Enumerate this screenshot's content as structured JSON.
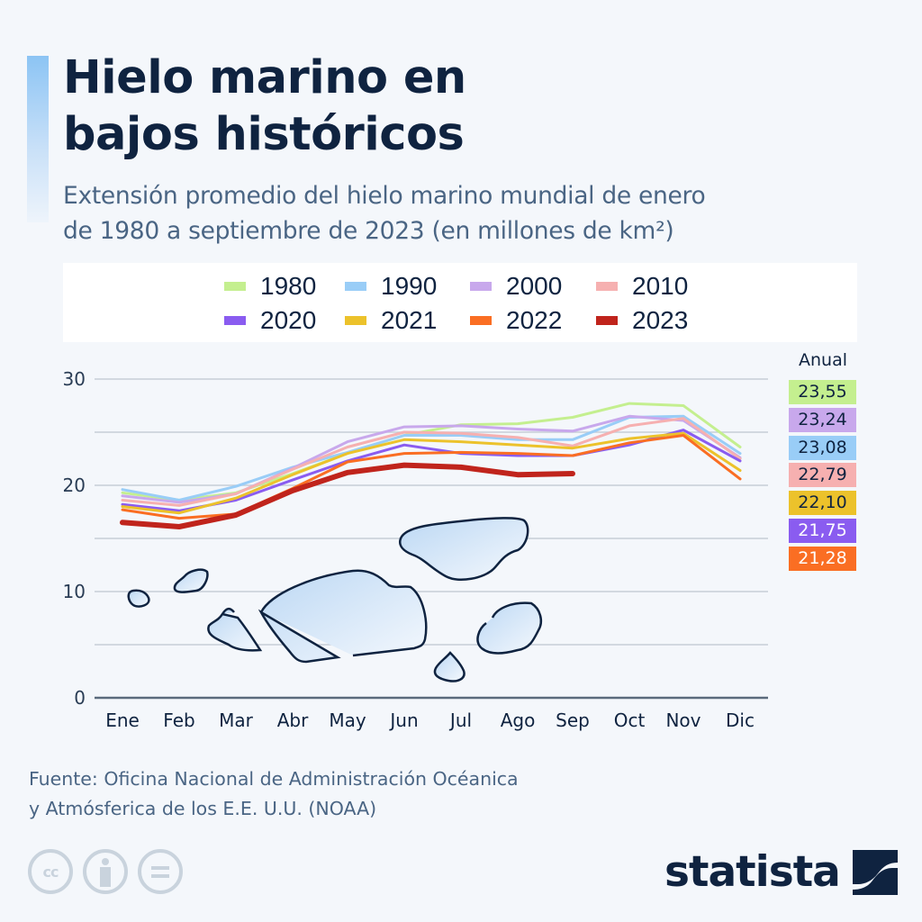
{
  "header": {
    "title_line1": "Hielo marino en",
    "title_line2": "bajos históricos",
    "subtitle_line1": "Extensión promedio del hielo marino mundial de enero",
    "subtitle_line2": "de 1980 a septiembre de 2023 (en millones de km²)"
  },
  "annual": {
    "title": "Anual",
    "badges": [
      {
        "value": "23,55",
        "color": "#c4ef8f",
        "text_color": "#0f2340"
      },
      {
        "value": "23,24",
        "color": "#c8a8ec",
        "text_color": "#0f2340"
      },
      {
        "value": "23,08",
        "color": "#99cdf7",
        "text_color": "#0f2340"
      },
      {
        "value": "22,79",
        "color": "#f6b0b0",
        "text_color": "#0f2340"
      },
      {
        "value": "22,10",
        "color": "#ecc22b",
        "text_color": "#0f2340"
      },
      {
        "value": "21,75",
        "color": "#8a5cf0",
        "text_color": "#ffffff"
      },
      {
        "value": "21,28",
        "color": "#fa6e23",
        "text_color": "#ffffff"
      }
    ]
  },
  "chart_data": {
    "type": "line",
    "title": "Hielo marino en bajos históricos",
    "subtitle": "Extensión promedio del hielo marino mundial de enero de 1980 a septiembre de 2023 (en millones de km²)",
    "xlabel": "",
    "ylabel": "",
    "categories": [
      "Ene",
      "Feb",
      "Mar",
      "Abr",
      "May",
      "Jun",
      "Jul",
      "Ago",
      "Sep",
      "Oct",
      "Nov",
      "Dic"
    ],
    "yticks": [
      "0",
      "10",
      "20",
      "30"
    ],
    "ylim": [
      0,
      30
    ],
    "grid": true,
    "legend_position": "top",
    "series": [
      {
        "name": "1980",
        "color": "#c4ef8f",
        "width": 3,
        "values": [
          19.3,
          18.6,
          19.3,
          21.1,
          23.0,
          24.7,
          25.7,
          25.8,
          26.4,
          27.7,
          27.5,
          23.6
        ]
      },
      {
        "name": "1990",
        "color": "#99cdf7",
        "width": 3,
        "values": [
          19.6,
          18.6,
          19.9,
          21.7,
          23.1,
          24.7,
          24.7,
          24.3,
          24.3,
          26.4,
          26.5,
          23.0
        ]
      },
      {
        "name": "2000",
        "color": "#c8a8ec",
        "width": 3,
        "values": [
          19.0,
          18.4,
          19.2,
          21.6,
          24.1,
          25.5,
          25.6,
          25.3,
          25.1,
          26.5,
          26.1,
          22.6
        ]
      },
      {
        "name": "2010",
        "color": "#f6b0b0",
        "width": 3,
        "values": [
          18.6,
          18.1,
          19.2,
          21.5,
          23.6,
          25.0,
          24.9,
          24.5,
          23.7,
          25.6,
          26.3,
          22.5
        ]
      },
      {
        "name": "2020",
        "color": "#8a5cf0",
        "width": 3,
        "values": [
          18.2,
          17.6,
          18.6,
          20.5,
          22.3,
          23.8,
          23.0,
          22.8,
          22.8,
          23.8,
          25.2,
          22.3
        ]
      },
      {
        "name": "2021",
        "color": "#ecc22b",
        "width": 3,
        "values": [
          18.0,
          17.4,
          18.8,
          21.0,
          23.0,
          24.3,
          24.1,
          23.8,
          23.5,
          24.4,
          24.9,
          21.4
        ]
      },
      {
        "name": "2022",
        "color": "#fa6e23",
        "width": 3,
        "values": [
          17.7,
          16.9,
          17.3,
          19.7,
          22.2,
          23.0,
          23.1,
          23.0,
          22.8,
          24.0,
          24.7,
          20.6
        ]
      },
      {
        "name": "2023",
        "color": "#c0241c",
        "width": 6,
        "values": [
          16.5,
          16.1,
          17.2,
          19.5,
          21.2,
          21.9,
          21.7,
          21.0,
          21.1,
          null,
          null,
          null
        ]
      }
    ]
  },
  "footer": {
    "source_line1": "Fuente: Oficina Nacional de Administración Océanica",
    "source_line2": "y Atmósferica de los E.E. U.U. (NOAA)",
    "cc_label": "cc",
    "logo_text": "statista"
  }
}
